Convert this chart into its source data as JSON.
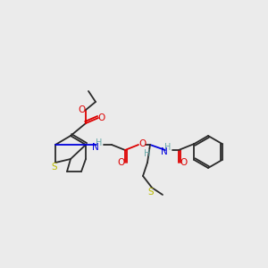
{
  "bg": "#ebebeb",
  "C": "#2a2a2a",
  "H": "#6aabab",
  "N": "#0000dd",
  "O": "#dd0000",
  "Sy": "#bbbb00",
  "Sd": "#2a2a2a",
  "lw": 1.3,
  "fs": 7.5,
  "figsize": [
    3.0,
    3.0
  ],
  "dpi": 100
}
